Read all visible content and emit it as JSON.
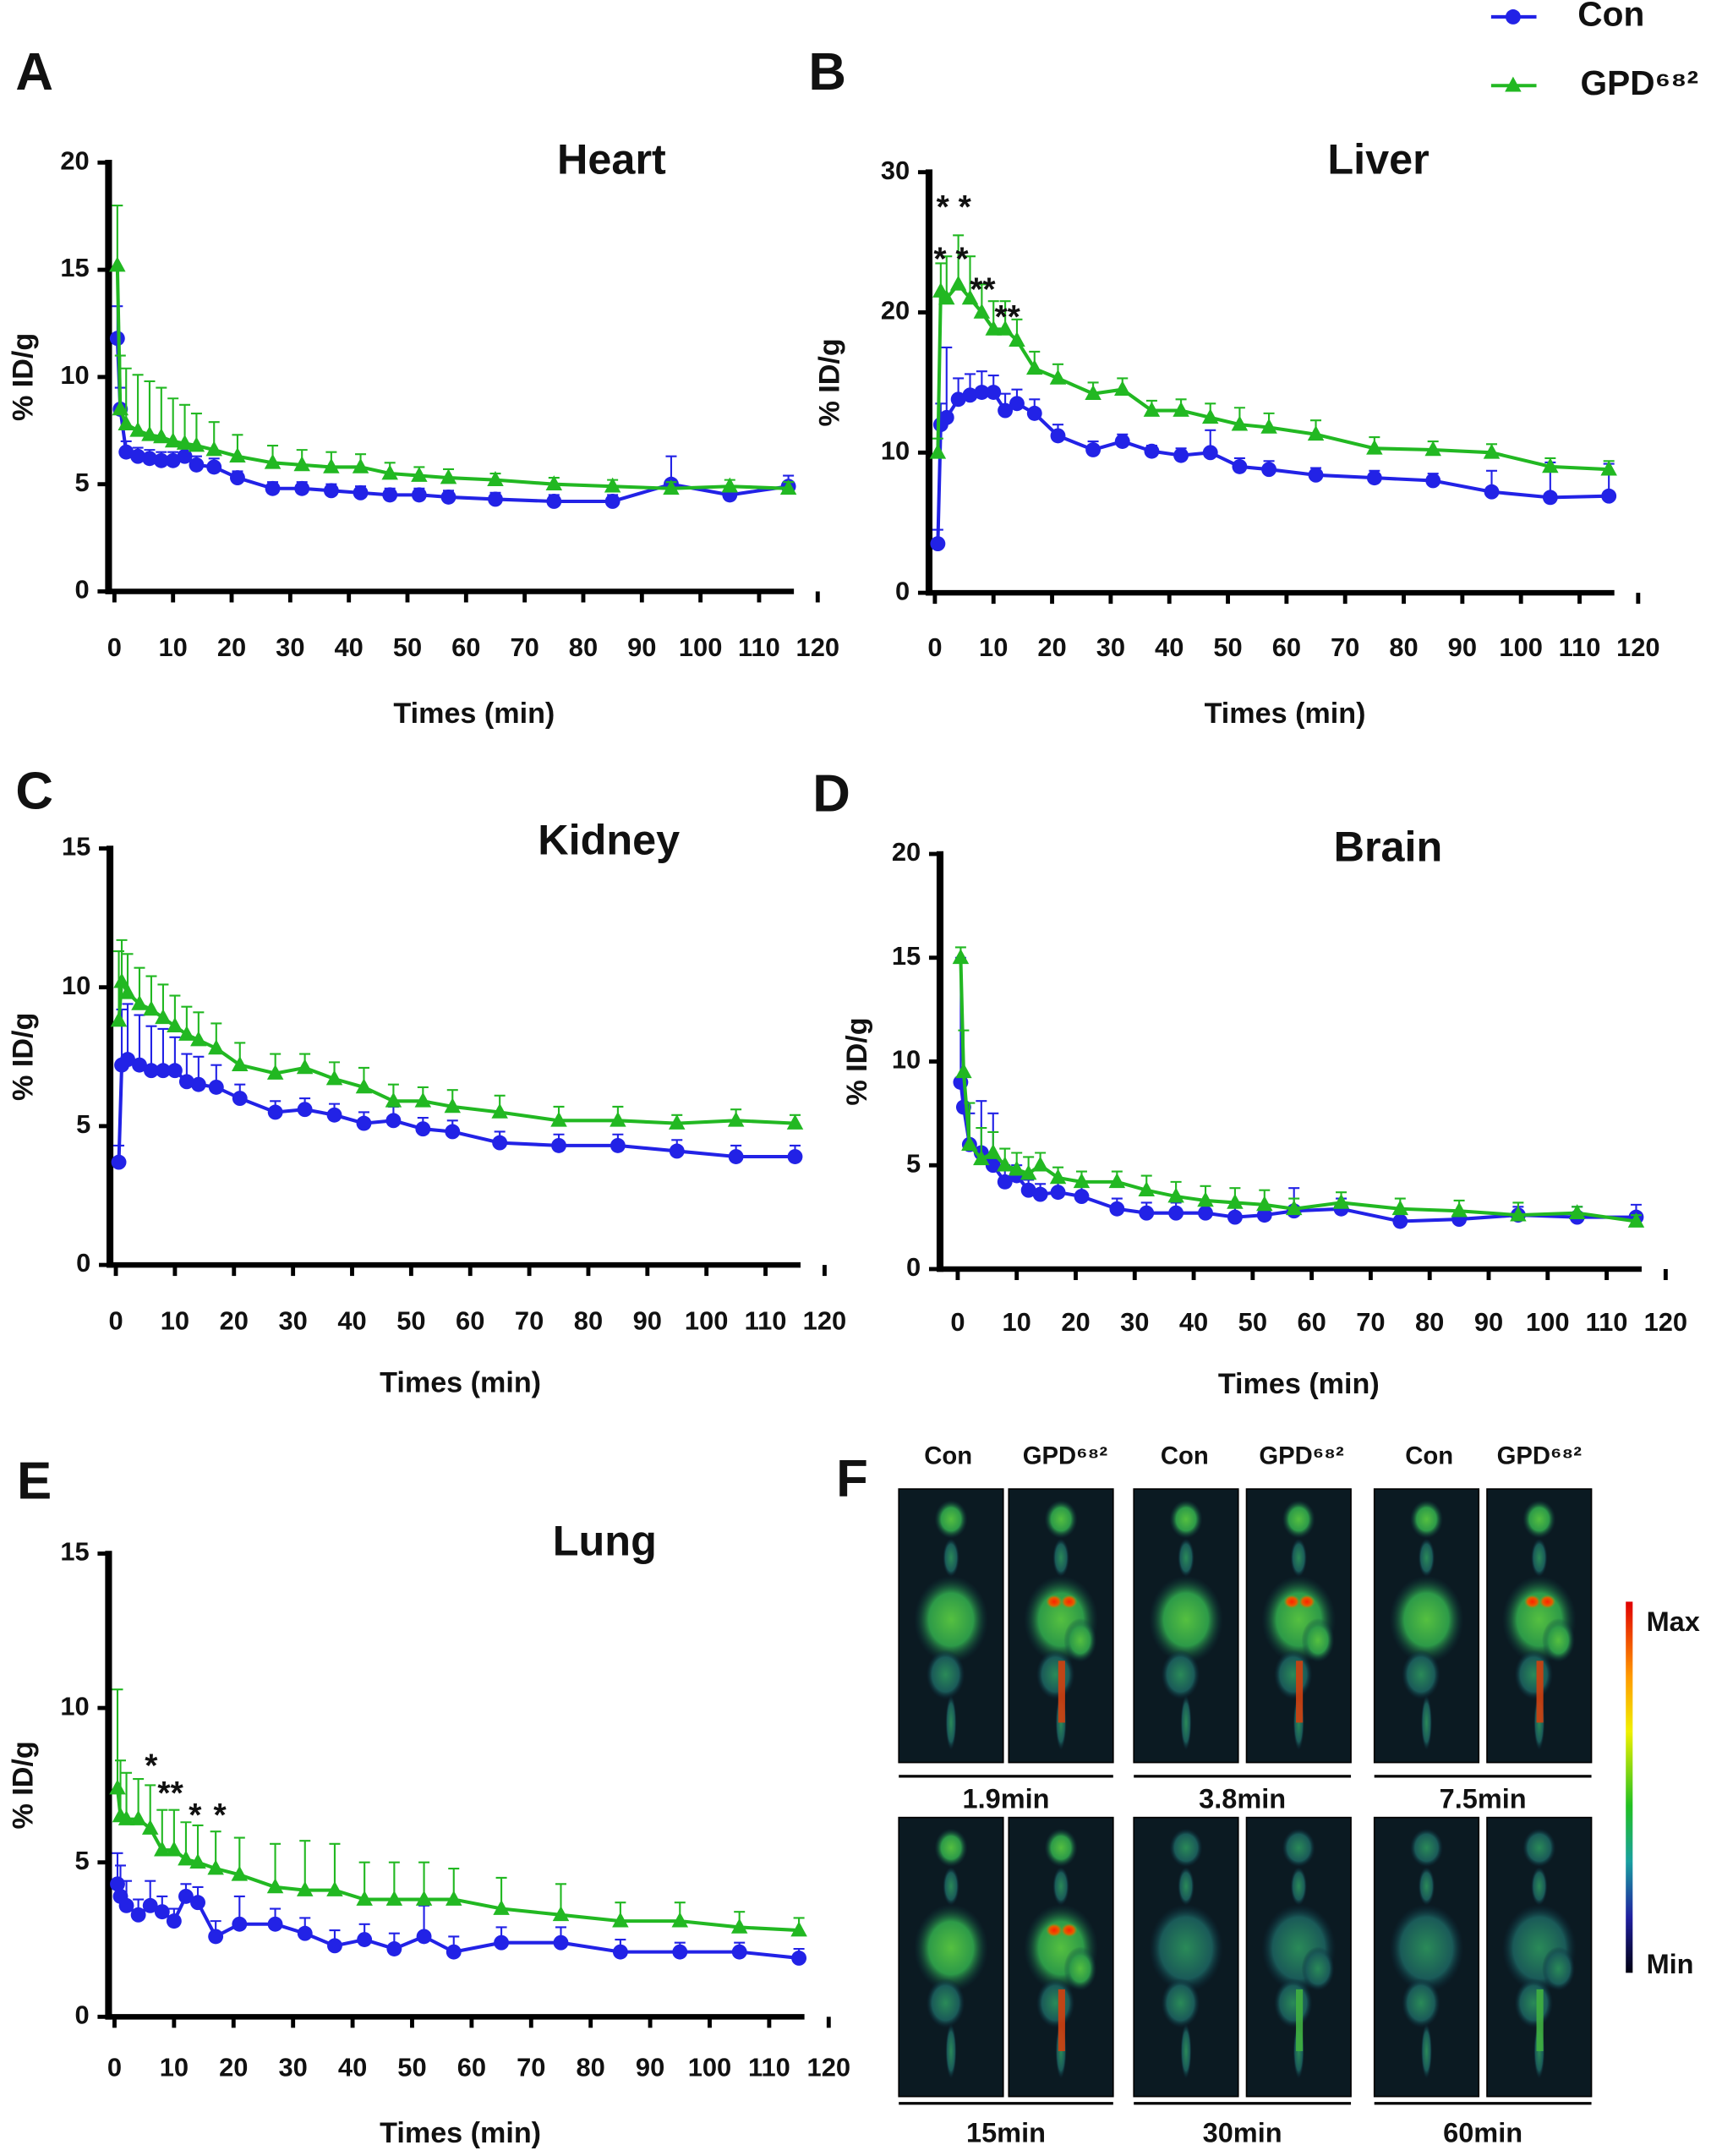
{
  "legend": [
    {
      "name": "Con",
      "color": "#2222e6"
    },
    {
      "name": "GPD⁶⁸²",
      "color": "#22b822"
    }
  ],
  "chart_data": [
    {
      "type": "line",
      "letter": "A",
      "title": "Heart",
      "x_label": "Times (min)",
      "y_label": "% ID/g",
      "x": [
        0.5,
        1,
        2,
        4,
        6,
        8,
        10,
        12,
        14,
        17,
        21,
        27,
        32,
        37,
        42,
        47,
        52,
        57,
        65,
        75,
        85,
        95,
        105,
        115
      ],
      "xlim": [
        -1,
        120
      ],
      "xticks": [
        0,
        10,
        20,
        30,
        40,
        50,
        60,
        70,
        80,
        90,
        100,
        110,
        120
      ],
      "ylim": [
        0,
        20
      ],
      "yticks": [
        0,
        5,
        10,
        15,
        20
      ],
      "series": [
        {
          "color": "#2222e6",
          "values": [
            11.8,
            8.5,
            6.5,
            6.3,
            6.2,
            6.1,
            6.1,
            6.3,
            5.9,
            5.8,
            5.3,
            4.8,
            4.8,
            4.7,
            4.6,
            4.5,
            4.5,
            4.4,
            4.3,
            4.2,
            4.2,
            5.0,
            4.5,
            4.9
          ],
          "errors": [
            1.5,
            1.0,
            0.5,
            0.4,
            0.4,
            0.4,
            0.4,
            0.4,
            0.4,
            0.4,
            0.3,
            0.3,
            0.3,
            0.3,
            0.3,
            0.3,
            0.3,
            0.3,
            0.3,
            0.3,
            0.3,
            1.3,
            0.3,
            0.5
          ]
        },
        {
          "color": "#22b822",
          "values": [
            15.2,
            8.5,
            7.8,
            7.5,
            7.3,
            7.2,
            7.0,
            6.9,
            6.8,
            6.6,
            6.3,
            6.0,
            5.9,
            5.8,
            5.8,
            5.5,
            5.4,
            5.3,
            5.2,
            5.0,
            4.9,
            4.8,
            4.9,
            4.8
          ],
          "errors": [
            2.8,
            2.5,
            2.6,
            2.6,
            2.5,
            2.3,
            2.0,
            1.8,
            1.5,
            1.3,
            1.0,
            0.8,
            0.7,
            0.7,
            0.6,
            0.5,
            0.4,
            0.4,
            0.3,
            0.3,
            0.3,
            0.3,
            0.3,
            0.3
          ]
        }
      ],
      "annotations": []
    },
    {
      "type": "line",
      "letter": "B",
      "title": "Liver",
      "x_label": "Times (min)",
      "y_label": "% ID/g",
      "x": [
        0.5,
        1,
        2,
        4,
        6,
        8,
        10,
        12,
        14,
        17,
        21,
        27,
        32,
        37,
        42,
        47,
        52,
        57,
        65,
        75,
        85,
        95,
        105,
        115
      ],
      "xlim": [
        -1,
        120
      ],
      "xticks": [
        0,
        10,
        20,
        30,
        40,
        50,
        60,
        70,
        80,
        90,
        100,
        110,
        120
      ],
      "ylim": [
        0,
        30
      ],
      "yticks": [
        0,
        10,
        20,
        30
      ],
      "series": [
        {
          "color": "#2222e6",
          "values": [
            3.5,
            12,
            12.5,
            13.8,
            14.1,
            14.3,
            14.3,
            13,
            13.5,
            12.8,
            11.2,
            10.2,
            10.8,
            10.1,
            9.8,
            10.0,
            9.0,
            8.8,
            8.4,
            8.2,
            8.0,
            7.2,
            6.8,
            6.9
          ],
          "errors": [
            1,
            1.5,
            5,
            1.5,
            1.5,
            1.5,
            1.2,
            1.2,
            1.0,
            1,
            0.8,
            0.6,
            0.5,
            0.4,
            0.5,
            1.6,
            0.6,
            0.6,
            0.5,
            0.5,
            0.5,
            1.5,
            2.5,
            2.3
          ]
        },
        {
          "color": "#22b822",
          "values": [
            10,
            21.5,
            21,
            22,
            21,
            20,
            18.8,
            18.8,
            18,
            16,
            15.3,
            14.2,
            14.5,
            13,
            13,
            12.5,
            12,
            11.8,
            11.3,
            10.3,
            10.2,
            10,
            9,
            8.8
          ],
          "errors": [
            1,
            2,
            3,
            3.5,
            3,
            2,
            2,
            2,
            1.5,
            1.2,
            1,
            0.8,
            0.8,
            0.7,
            0.8,
            1,
            1.2,
            1,
            1,
            0.8,
            0.6,
            0.6,
            0.6,
            0.6
          ]
        }
      ],
      "annotations": [
        "* *",
        "* *",
        "**",
        "**"
      ]
    },
    {
      "type": "line",
      "letter": "C",
      "title": "Kidney",
      "x_label": "Times (min)",
      "y_label": "% ID/g",
      "x": [
        0.5,
        1,
        2,
        4,
        6,
        8,
        10,
        12,
        14,
        17,
        21,
        27,
        32,
        37,
        42,
        47,
        52,
        57,
        65,
        75,
        85,
        95,
        105,
        115
      ],
      "xlim": [
        -1,
        120
      ],
      "xticks": [
        0,
        10,
        20,
        30,
        40,
        50,
        60,
        70,
        80,
        90,
        100,
        110,
        120
      ],
      "ylim": [
        0,
        15
      ],
      "yticks": [
        0,
        5,
        10,
        15
      ],
      "series": [
        {
          "color": "#2222e6",
          "values": [
            3.7,
            7.2,
            7.4,
            7.2,
            7.0,
            7.0,
            7.0,
            6.6,
            6.5,
            6.4,
            6.0,
            5.5,
            5.6,
            5.4,
            5.1,
            5.2,
            4.9,
            4.8,
            4.4,
            4.3,
            4.3,
            4.1,
            3.9,
            3.9
          ],
          "errors": [
            0.6,
            2,
            2,
            1.8,
            1.6,
            1.5,
            1.2,
            1,
            1,
            0.8,
            0.5,
            0.4,
            0.4,
            0.4,
            0.4,
            0.5,
            0.4,
            0.4,
            0.4,
            0.4,
            0.4,
            0.4,
            0.4,
            0.4
          ]
        },
        {
          "color": "#22b822",
          "values": [
            8.8,
            10.2,
            9.8,
            9.4,
            9.2,
            8.9,
            8.6,
            8.3,
            8.1,
            7.8,
            7.2,
            6.9,
            7.1,
            6.7,
            6.4,
            5.9,
            5.9,
            5.7,
            5.5,
            5.2,
            5.2,
            5.1,
            5.2,
            5.1
          ],
          "errors": [
            2.5,
            1.5,
            1.4,
            1.3,
            1.2,
            1.2,
            1.1,
            1,
            1,
            0.9,
            0.8,
            0.7,
            0.5,
            0.6,
            0.7,
            0.6,
            0.5,
            0.6,
            0.6,
            0.5,
            0.5,
            0.3,
            0.4,
            0.3
          ]
        }
      ],
      "annotations": []
    },
    {
      "type": "line",
      "letter": "D",
      "title": "Brain",
      "x_label": "Times (min)",
      "y_label": "% ID/g",
      "x": [
        0.5,
        1,
        2,
        4,
        6,
        8,
        10,
        12,
        14,
        17,
        21,
        27,
        32,
        37,
        42,
        47,
        52,
        57,
        65,
        75,
        85,
        95,
        105,
        115
      ],
      "xlim": [
        -3,
        120
      ],
      "xticks": [
        0,
        10,
        20,
        30,
        40,
        50,
        60,
        70,
        80,
        90,
        100,
        110,
        120
      ],
      "ylim": [
        0,
        20
      ],
      "yticks": [
        0,
        5,
        10,
        15,
        20
      ],
      "series": [
        {
          "color": "#2222e6",
          "values": [
            9,
            7.8,
            6,
            5.6,
            5.0,
            4.2,
            4.5,
            3.8,
            3.6,
            3.7,
            3.5,
            2.9,
            2.7,
            2.7,
            2.7,
            2.5,
            2.6,
            2.8,
            2.9,
            2.3,
            2.4,
            2.6,
            2.5,
            2.5
          ],
          "errors": [
            6,
            1.5,
            1.5,
            2.5,
            2.5,
            0.8,
            0.5,
            0.5,
            0.5,
            0.5,
            0.5,
            0.5,
            0.5,
            0.5,
            0.5,
            0.5,
            0.5,
            1.1,
            0.5,
            0.4,
            0.4,
            0.4,
            0.5,
            0.6
          ]
        },
        {
          "color": "#22b822",
          "values": [
            15,
            9.5,
            6,
            5.3,
            5.6,
            5.0,
            4.8,
            4.6,
            5.0,
            4.4,
            4.2,
            4.2,
            3.8,
            3.5,
            3.3,
            3.2,
            3.1,
            2.9,
            3.2,
            2.9,
            2.8,
            2.6,
            2.7,
            2.3
          ],
          "errors": [
            0.5,
            2,
            2,
            1.5,
            1,
            0.8,
            0.8,
            0.8,
            0.6,
            0.5,
            0.5,
            0.5,
            0.7,
            0.7,
            0.7,
            0.7,
            0.7,
            0.5,
            0.5,
            0.5,
            0.5,
            0.6,
            0.3,
            0.3
          ]
        }
      ],
      "annotations": []
    },
    {
      "type": "line",
      "letter": "E",
      "title": "Lung",
      "x_label": "Times (min)",
      "y_label": "% ID/g",
      "x": [
        0.5,
        1,
        2,
        4,
        6,
        8,
        10,
        12,
        14,
        17,
        21,
        27,
        32,
        37,
        42,
        47,
        52,
        57,
        65,
        75,
        85,
        95,
        105,
        115
      ],
      "xlim": [
        -1,
        120
      ],
      "xticks": [
        0,
        10,
        20,
        30,
        40,
        50,
        60,
        70,
        80,
        90,
        100,
        110,
        120
      ],
      "ylim": [
        0,
        15
      ],
      "yticks": [
        0,
        5,
        10,
        15
      ],
      "series": [
        {
          "color": "#2222e6",
          "values": [
            4.3,
            3.9,
            3.6,
            3.3,
            3.6,
            3.4,
            3.1,
            3.9,
            3.7,
            2.6,
            3.0,
            3.0,
            2.7,
            2.3,
            2.5,
            2.2,
            2.6,
            2.1,
            2.4,
            2.4,
            2.1,
            2.1,
            2.1,
            1.9
          ],
          "errors": [
            1,
            1,
            0.8,
            0.5,
            0.8,
            0.5,
            0.4,
            0.4,
            0.5,
            0.5,
            0.9,
            0.5,
            0.5,
            0.5,
            0.5,
            0.5,
            1,
            0.5,
            0.5,
            0.5,
            0.4,
            0.3,
            0.3,
            0.3
          ]
        },
        {
          "color": "#22b822",
          "values": [
            7.4,
            6.5,
            6.4,
            6.4,
            6.1,
            5.4,
            5.4,
            5.1,
            5.0,
            4.8,
            4.6,
            4.2,
            4.1,
            4.1,
            3.8,
            3.8,
            3.8,
            3.8,
            3.5,
            3.3,
            3.1,
            3.1,
            2.9,
            2.8
          ],
          "errors": [
            3.2,
            1.8,
            1.5,
            1.3,
            1.4,
            1.3,
            1.3,
            1.2,
            1.2,
            1.2,
            1.2,
            1.4,
            1.6,
            1.5,
            1.2,
            1.2,
            1.2,
            1,
            1,
            1,
            0.6,
            0.6,
            0.5,
            0.4
          ]
        }
      ],
      "annotations": [
        "*",
        "**",
        "*",
        "*"
      ]
    }
  ],
  "panel_f": {
    "letter": "F",
    "columns": [
      "Con",
      "GPD⁶⁸²",
      "Con",
      "GPD⁶⁸²",
      "Con",
      "GPD⁶⁸²"
    ],
    "times": [
      "1.9min",
      "3.8min",
      "7.5min",
      "15min",
      "30min",
      "60min"
    ],
    "colorbar": {
      "max": "Max",
      "min": "Min"
    }
  }
}
